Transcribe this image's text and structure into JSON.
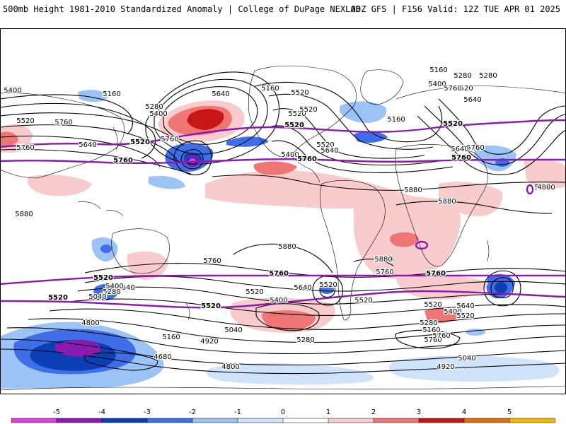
{
  "header": {
    "left": "500mb Height 1981-2010 Standardized Anomaly | College of DuPage NEXLAB",
    "right": "00Z GFS | F156 Valid: 12Z TUE APR 01 2025"
  },
  "legend": {
    "ticks": [
      "-5",
      "-4",
      "-3",
      "-2",
      "-1",
      "0",
      "1",
      "2",
      "3",
      "4",
      "5"
    ],
    "colors": [
      "#e040e0",
      "#8a1ab0",
      "#0a3fb5",
      "#3e6ee8",
      "#9cc3f5",
      "#cfe3fb",
      "#ffffff",
      "#f8cccc",
      "#f07575",
      "#c71616",
      "#e07010",
      "#f5b800"
    ]
  },
  "map": {
    "highlight_color": "#8a1ab0",
    "contour_labels": [
      "5400",
      "5160",
      "5520",
      "5280",
      "5400",
      "5640",
      "5160",
      "5520",
      "5760",
      "5640",
      "5520",
      "5760",
      "5760",
      "5520",
      "5400",
      "5640",
      "5520",
      "5160",
      "5280",
      "5400",
      "5520",
      "5640",
      "5160",
      "5280",
      "5760",
      "5640",
      "5760",
      "5880",
      "5880",
      "5880",
      "5760",
      "5880",
      "5760",
      "5760",
      "5640",
      "5280",
      "5400",
      "5040",
      "4800",
      "5520",
      "5520",
      "5640",
      "5520",
      "5400",
      "5040",
      "4920",
      "5160",
      "4680",
      "4800",
      "5280",
      "5880",
      "5760",
      "5760",
      "5520",
      "5640",
      "5400",
      "5520",
      "5280",
      "5160",
      "5040",
      "4920",
      "4800",
      "5880"
    ],
    "highlight_labels": [
      "5520",
      "5520",
      "5520",
      "5760",
      "5760",
      "5760",
      "5760",
      "5760",
      "5520",
      "5520",
      "5520"
    ]
  }
}
